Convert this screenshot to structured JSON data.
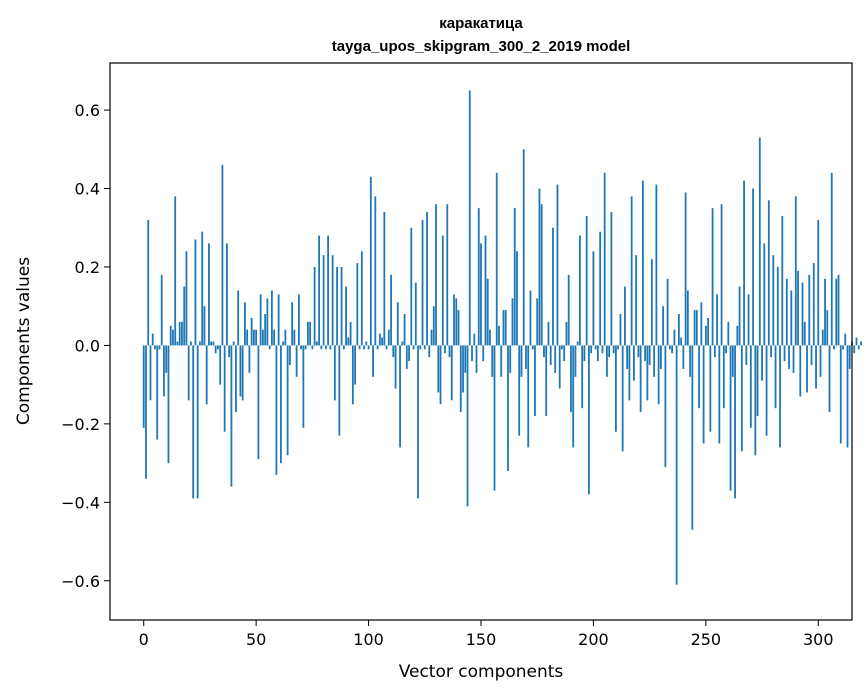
{
  "chart_data": {
    "type": "bar",
    "title_line1": "каракатица",
    "title_line2": "tayga_upos_skipgram_300_2_2019 model",
    "xlabel": "Vector components",
    "ylabel": "Components values",
    "xlim": [
      -15,
      315
    ],
    "ylim": [
      -0.7,
      0.72
    ],
    "xticks": [
      0,
      50,
      100,
      150,
      200,
      250,
      300
    ],
    "xtick_labels": [
      "0",
      "50",
      "100",
      "150",
      "200",
      "250",
      "300"
    ],
    "yticks": [
      -0.6,
      -0.4,
      -0.2,
      0.0,
      0.2,
      0.4,
      0.6
    ],
    "ytick_labels": [
      "−0.6",
      "−0.4",
      "−0.2",
      "0.0",
      "0.2",
      "0.4",
      "0.6"
    ],
    "bar_color": "#1f77b4",
    "values": [
      -0.21,
      -0.34,
      0.32,
      -0.14,
      0.03,
      -0.01,
      -0.24,
      -0.01,
      0.18,
      -0.13,
      -0.07,
      -0.3,
      0.05,
      0.04,
      0.38,
      0.01,
      0.06,
      0.06,
      0.15,
      0.24,
      -0.14,
      0.01,
      -0.39,
      0.27,
      -0.39,
      0.01,
      0.29,
      0.1,
      -0.15,
      0.26,
      0.01,
      0.01,
      -0.02,
      -0.01,
      -0.1,
      0.46,
      -0.22,
      0.26,
      -0.03,
      -0.36,
      0.01,
      -0.17,
      0.14,
      -0.13,
      -0.14,
      0.11,
      0.04,
      -0.07,
      0.07,
      0.04,
      0.04,
      -0.29,
      0.13,
      0.04,
      0.08,
      0.12,
      -0.01,
      0.14,
      0.04,
      -0.33,
      0.13,
      -0.3,
      0.01,
      0.04,
      -0.28,
      -0.05,
      0.11,
      0.04,
      -0.08,
      0.13,
      -0.01,
      -0.21,
      -0.01,
      0.06,
      0.06,
      -0.01,
      0.2,
      0.01,
      0.28,
      -0.01,
      0.23,
      -0.01,
      0.28,
      -0.01,
      0.23,
      -0.14,
      0.2,
      -0.23,
      0.2,
      -0.01,
      0.15,
      0.02,
      0.06,
      -0.15,
      -0.1,
      0.21,
      -0.01,
      0.24,
      -0.01,
      0.01,
      -0.01,
      0.43,
      -0.08,
      0.38,
      -0.01,
      0.03,
      0.02,
      0.34,
      -0.01,
      0.04,
      0.18,
      -0.03,
      -0.11,
      0.11,
      -0.26,
      0.01,
      0.08,
      -0.06,
      -0.04,
      0.3,
      -0.01,
      0.16,
      -0.39,
      -0.01,
      0.32,
      -0.01,
      0.34,
      -0.03,
      0.04,
      0.1,
      0.36,
      -0.12,
      -0.15,
      0.28,
      -0.02,
      0.36,
      -0.03,
      -0.14,
      0.13,
      0.12,
      0.09,
      -0.17,
      -0.12,
      -0.07,
      -0.41,
      0.65,
      -0.04,
      0.03,
      -0.07,
      0.35,
      0.26,
      -0.04,
      0.28,
      0.17,
      0.04,
      -0.08,
      -0.37,
      0.44,
      0.05,
      -0.08,
      0.09,
      0.09,
      -0.32,
      -0.07,
      0.12,
      0.35,
      0.24,
      -0.23,
      -0.08,
      0.5,
      -0.06,
      -0.26,
      0.14,
      -0.01,
      -0.18,
      0.12,
      0.4,
      0.36,
      -0.03,
      -0.18,
      0.06,
      -0.05,
      0.3,
      -0.07,
      0.41,
      -0.11,
      -0.01,
      -0.04,
      0.06,
      0.18,
      -0.17,
      -0.26,
      -0.08,
      0.01,
      0.28,
      -0.16,
      -0.04,
      0.33,
      -0.38,
      -0.02,
      0.24,
      -0.01,
      -0.04,
      0.29,
      -0.02,
      0.44,
      -0.08,
      -0.03,
      0.34,
      -0.02,
      -0.22,
      -0.01,
      0.08,
      -0.27,
      0.15,
      -0.06,
      -0.14,
      0.38,
      -0.09,
      0.23,
      -0.03,
      -0.17,
      0.42,
      -0.04,
      -0.14,
      -0.05,
      0.22,
      -0.08,
      0.41,
      -0.15,
      -0.06,
      0.1,
      -0.31,
      0.17,
      -0.01,
      -0.02,
      0.04,
      -0.61,
      0.08,
      0.02,
      -0.06,
      0.39,
      0.14,
      -0.08,
      -0.47,
      0.09,
      0.09,
      -0.16,
      0.11,
      -0.25,
      0.05,
      0.07,
      -0.22,
      0.35,
      -0.03,
      0.13,
      -0.25,
      0.36,
      -0.16,
      -0.02,
      0.06,
      -0.37,
      -0.08,
      -0.39,
      0.05,
      0.15,
      -0.27,
      0.42,
      -0.05,
      0.13,
      -0.21,
      0.4,
      -0.28,
      -0.18,
      0.53,
      -0.09,
      0.26,
      -0.23,
      0.37,
      -0.03,
      0.23,
      -0.16,
      0.2,
      -0.26,
      0.33,
      -0.04,
      0.17,
      -0.06,
      0.14,
      -0.07,
      0.38,
      0.19,
      -0.13,
      0.16,
      0.06,
      -0.12,
      0.18,
      -0.05,
      0.21,
      -0.11,
      0.32,
      -0.08,
      0.04,
      0.17,
      0.09,
      -0.17,
      0.44,
      -0.01,
      0.17,
      0.18,
      -0.25,
      -0.01,
      0.03,
      -0.26,
      -0.06,
      0.01,
      -0.02,
      0.02,
      -0.01,
      0.01
    ]
  }
}
